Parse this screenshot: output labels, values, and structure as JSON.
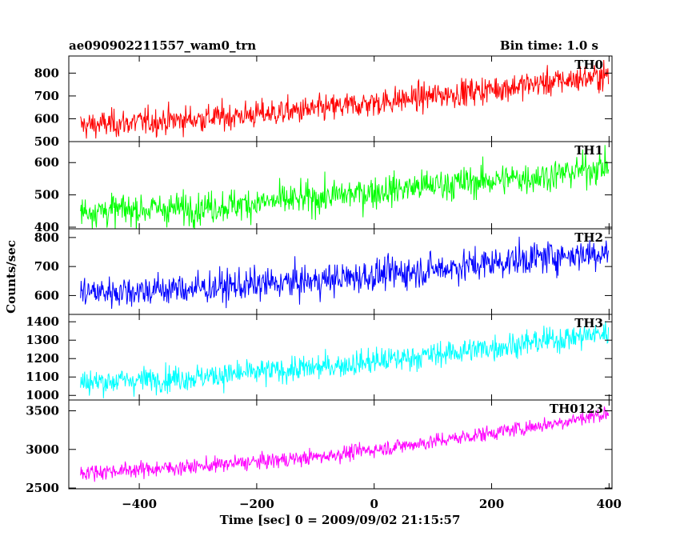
{
  "header": {
    "title": "ae090902211557_wam0_trn",
    "bin_time": "Bin time: 1.0 s"
  },
  "chart_data": {
    "type": "line",
    "x_axis": {
      "label": "Time [sec] 0 = 2009/09/02 21:15:57",
      "xlim": [
        -520,
        405
      ],
      "ticks": [
        -400,
        -200,
        0,
        200,
        400
      ],
      "tick_labels": [
        "−400",
        "−200",
        "0",
        "200",
        "400"
      ]
    },
    "y_axis_label": "Counts/sec",
    "colors": {
      "TH0": "#ff0000",
      "TH1": "#00ff00",
      "TH2": "#0000ff",
      "TH3": "#00ffff",
      "TH0123": "#ff00ff"
    },
    "panels": [
      {
        "name": "TH0",
        "ylim": [
          500,
          875
        ],
        "yticks": [
          500,
          600,
          700,
          800
        ],
        "ytick_labels": [
          "500",
          "600",
          "700",
          "800"
        ],
        "trend": {
          "x": [
            -500,
            -300,
            -100,
            100,
            300,
            400
          ],
          "y": [
            570,
            600,
            640,
            700,
            760,
            790
          ]
        },
        "noise": 30
      },
      {
        "name": "TH1",
        "ylim": [
          395,
          665
        ],
        "yticks": [
          400,
          500,
          600
        ],
        "ytick_labels": [
          "400",
          "500",
          "600"
        ],
        "trend": {
          "x": [
            -500,
            -300,
            -100,
            100,
            300,
            400
          ],
          "y": [
            450,
            460,
            490,
            530,
            560,
            590
          ]
        },
        "noise": 25
      },
      {
        "name": "TH2",
        "ylim": [
          535,
          830
        ],
        "yticks": [
          600,
          700,
          800
        ],
        "ytick_labels": [
          "600",
          "700",
          "800"
        ],
        "trend": {
          "x": [
            -500,
            -300,
            -100,
            100,
            300,
            400
          ],
          "y": [
            610,
            625,
            650,
            690,
            735,
            750
          ]
        },
        "noise": 28
      },
      {
        "name": "TH3",
        "ylim": [
          975,
          1440
        ],
        "yticks": [
          1000,
          1100,
          1200,
          1300,
          1400
        ],
        "ytick_labels": [
          "1000",
          "1100",
          "1200",
          "1300",
          "1400"
        ],
        "trend": {
          "x": [
            -500,
            -300,
            -100,
            100,
            300,
            400
          ],
          "y": [
            1070,
            1100,
            1150,
            1220,
            1300,
            1340
          ]
        },
        "noise": 35
      },
      {
        "name": "TH0123",
        "ylim": [
          2490,
          3640
        ],
        "yticks": [
          2500,
          3000,
          3500
        ],
        "ytick_labels": [
          "2500",
          "3000",
          "3500"
        ],
        "trend": {
          "x": [
            -500,
            -300,
            -100,
            100,
            300,
            400
          ],
          "y": [
            2700,
            2780,
            2900,
            3100,
            3330,
            3470
          ]
        },
        "noise": 50
      }
    ]
  }
}
